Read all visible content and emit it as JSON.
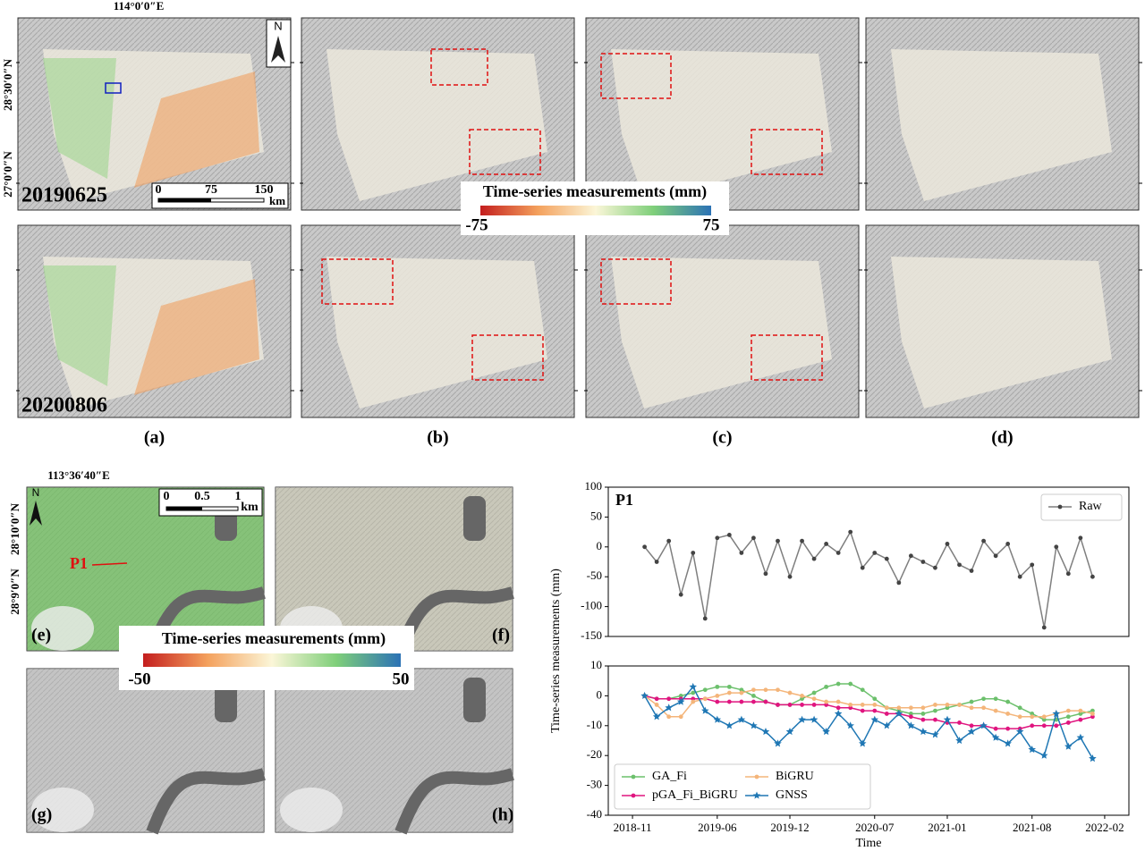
{
  "overview": {
    "lon_label": "114°0′0″E",
    "lat_labels": [
      "28°30′0″N",
      "27°0′0″N"
    ],
    "dates": [
      "20190625",
      "20200806"
    ],
    "panel_labels": [
      "(a)",
      "(b)",
      "(c)",
      "(d)"
    ],
    "north": "N",
    "scale": [
      0,
      75,
      150
    ],
    "scale_unit": "km",
    "colorbar": {
      "title": "Time-series measurements (mm)",
      "min": -75,
      "max": 75
    }
  },
  "detail": {
    "lon_label": "113°36′40″E",
    "lat_labels": [
      "28°10′0″N",
      "28°9′0″N"
    ],
    "panel_labels": [
      "(e)",
      "(f)",
      "(g)",
      "(h)"
    ],
    "north": "N",
    "scale": [
      0,
      0.5,
      1
    ],
    "scale_unit": "km",
    "point": "P1",
    "colorbar": {
      "title": "Time-series measurements (mm)",
      "min": -50,
      "max": 50
    }
  },
  "chart_data": [
    {
      "type": "line",
      "annotation": "P1",
      "ylabel": "Time-series measurements (mm)",
      "x": [
        "2018-12",
        "2019-01",
        "2019-02",
        "2019-03",
        "2019-04",
        "2019-05",
        "2019-06",
        "2019-07",
        "2019-08",
        "2019-09",
        "2019-10",
        "2019-11",
        "2019-12",
        "2020-01",
        "2020-02",
        "2020-03",
        "2020-04",
        "2020-05",
        "2020-06",
        "2020-07",
        "2020-08",
        "2020-09",
        "2020-10",
        "2020-11",
        "2020-12",
        "2021-01",
        "2021-02",
        "2021-03",
        "2021-04",
        "2021-05",
        "2021-06",
        "2021-07",
        "2021-08",
        "2021-09",
        "2021-10",
        "2021-11",
        "2021-12",
        "2022-01"
      ],
      "xlim": [
        "2018-09",
        "2022-04"
      ],
      "ylim": [
        -150,
        100
      ],
      "yticks": [
        -150,
        -100,
        -50,
        0,
        50,
        100
      ],
      "legend": "upper right",
      "legend_columns": 1,
      "series": [
        {
          "name": "Raw",
          "color": "#7f7f7f",
          "marker_color": "#444444",
          "marker": "circle",
          "values": [
            0,
            -25,
            10,
            -80,
            -10,
            -120,
            15,
            20,
            -10,
            15,
            -45,
            10,
            -50,
            10,
            -20,
            5,
            -10,
            25,
            -35,
            -10,
            -20,
            -60,
            -15,
            -25,
            -35,
            5,
            -30,
            -40,
            10,
            -15,
            5,
            -50,
            -30,
            -135,
            0,
            -45,
            15,
            -50
          ]
        }
      ]
    },
    {
      "type": "line",
      "xlabel": "Time",
      "x": [
        "2018-12",
        "2019-01",
        "2019-02",
        "2019-03",
        "2019-04",
        "2019-05",
        "2019-06",
        "2019-07",
        "2019-08",
        "2019-09",
        "2019-10",
        "2019-11",
        "2019-12",
        "2020-01",
        "2020-02",
        "2020-03",
        "2020-04",
        "2020-05",
        "2020-06",
        "2020-07",
        "2020-08",
        "2020-09",
        "2020-10",
        "2020-11",
        "2020-12",
        "2021-01",
        "2021-02",
        "2021-03",
        "2021-04",
        "2021-05",
        "2021-06",
        "2021-07",
        "2021-08",
        "2021-09",
        "2021-10",
        "2021-11",
        "2021-12",
        "2022-01"
      ],
      "xlim": [
        "2018-09",
        "2022-04"
      ],
      "xticks": [
        "2018-11",
        "2019-06",
        "2019-12",
        "2020-07",
        "2021-01",
        "2021-08",
        "2022-02"
      ],
      "ylim": [
        -40,
        10
      ],
      "yticks": [
        -40,
        -30,
        -20,
        -10,
        0,
        10
      ],
      "legend": "lower left",
      "legend_columns": 2,
      "series": [
        {
          "name": "GA_Fi",
          "color": "#6cc06c",
          "marker": "circle",
          "values": [
            0,
            -1,
            -1,
            0,
            1,
            2,
            3,
            3,
            2,
            0,
            -2,
            -3,
            -3,
            -1,
            1,
            3,
            4,
            4,
            2,
            -1,
            -4,
            -5,
            -6,
            -6,
            -5,
            -4,
            -3,
            -2,
            -1,
            -1,
            -2,
            -4,
            -6,
            -8,
            -8,
            -7,
            -6,
            -5
          ]
        },
        {
          "name": "pGA_Fi_BiGRU",
          "color": "#e0157f",
          "marker": "circle",
          "values": [
            0,
            -1,
            -1,
            -1,
            -1,
            -1,
            -2,
            -2,
            -2,
            -2,
            -2,
            -3,
            -3,
            -3,
            -3,
            -3,
            -4,
            -4,
            -5,
            -5,
            -6,
            -6,
            -7,
            -8,
            -8,
            -9,
            -9,
            -10,
            -10,
            -11,
            -11,
            -11,
            -10,
            -10,
            -10,
            -9,
            -8,
            -7
          ]
        },
        {
          "name": "BiGRU",
          "color": "#f4b57a",
          "marker": "circle",
          "values": [
            0,
            -3,
            -7,
            -7,
            -2,
            -1,
            0,
            1,
            1,
            2,
            2,
            2,
            1,
            0,
            -1,
            -2,
            -2,
            -3,
            -3,
            -3,
            -4,
            -4,
            -4,
            -4,
            -3,
            -3,
            -3,
            -4,
            -4,
            -5,
            -6,
            -7,
            -7,
            -7,
            -6,
            -5,
            -5,
            -6
          ]
        },
        {
          "name": "GNSS",
          "color": "#1f77b4",
          "marker": "star",
          "values": [
            0,
            -7,
            -4,
            -2,
            3,
            -5,
            -8,
            -10,
            -8,
            -10,
            -12,
            -16,
            -12,
            -8,
            -8,
            -12,
            -6,
            -10,
            -16,
            -8,
            -10,
            -6,
            -10,
            -12,
            -13,
            -8,
            -15,
            -12,
            -10,
            -14,
            -16,
            -12,
            -18,
            -20,
            -6,
            -17,
            -14,
            -21
          ]
        }
      ]
    }
  ]
}
